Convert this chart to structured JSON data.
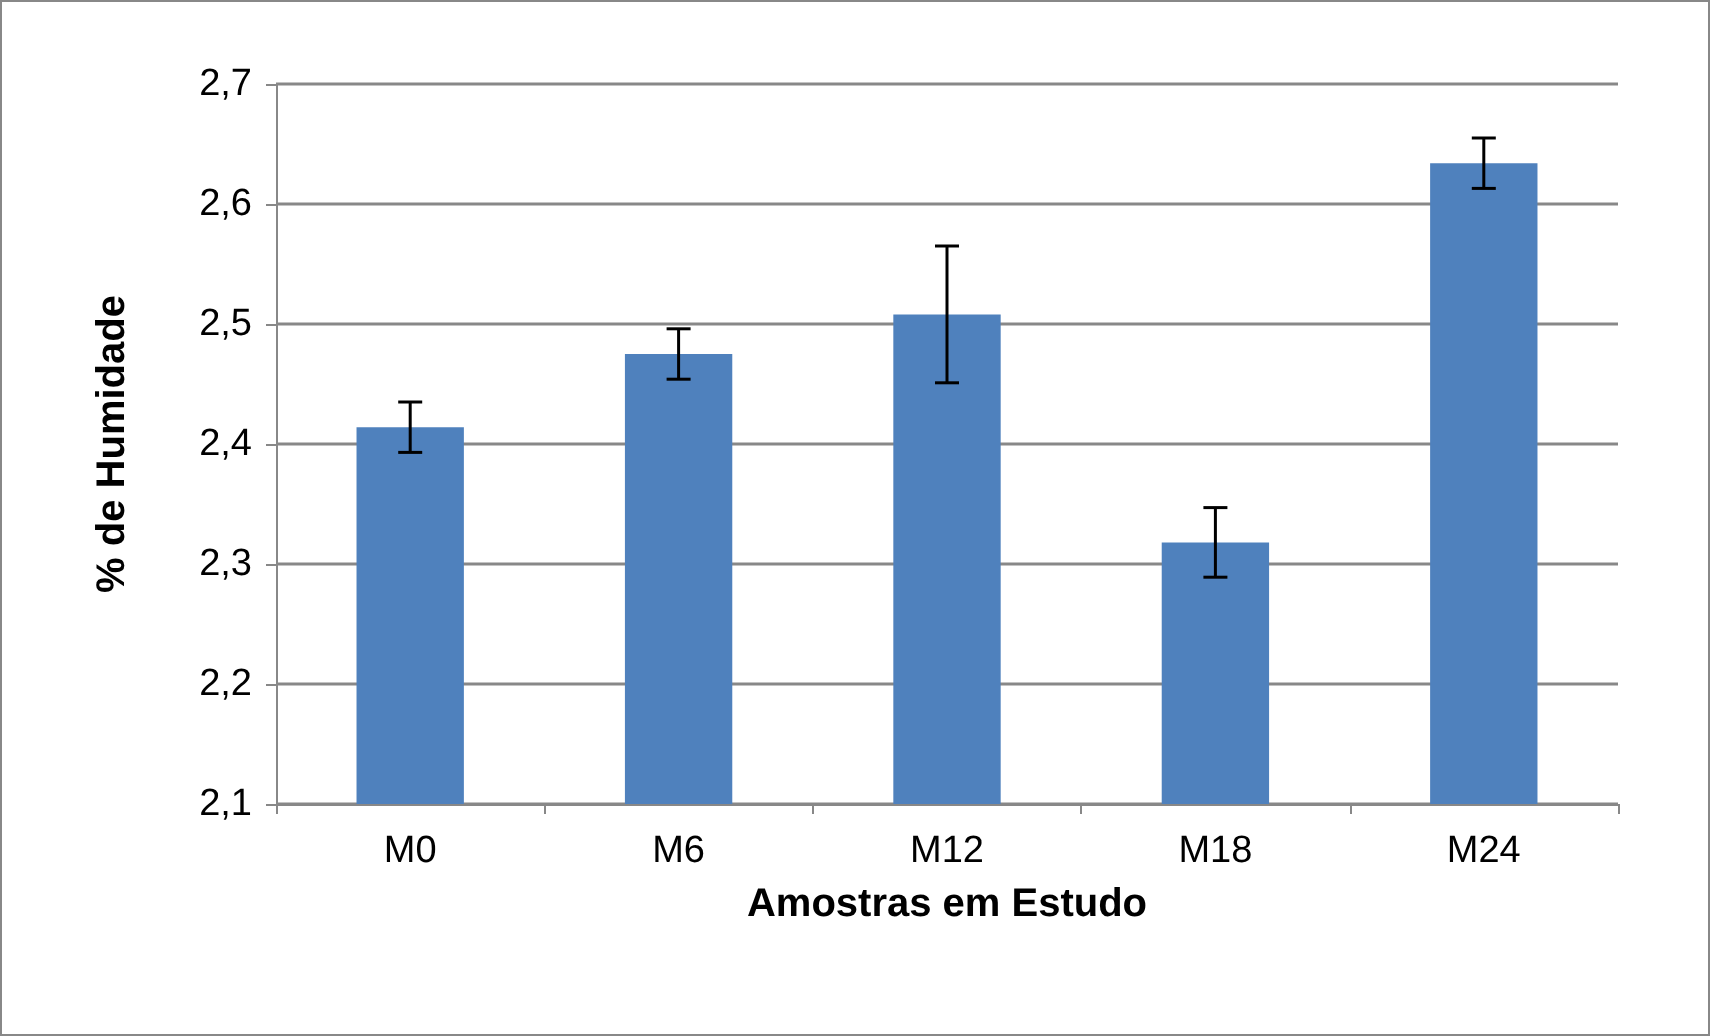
{
  "chart_data": {
    "type": "bar",
    "xlabel": "Amostras em Estudo",
    "ylabel": "% de Humidade",
    "categories": [
      "M0",
      "M6",
      "M12",
      "M18",
      "M24"
    ],
    "values": [
      2.414,
      2.475,
      2.508,
      2.318,
      2.634
    ],
    "errors": [
      0.021,
      0.021,
      0.057,
      0.029,
      0.021
    ],
    "color": "#4f81bd",
    "ylim": [
      2.1,
      2.7
    ],
    "yticks": [
      {
        "value": 2.1,
        "label": "2,1"
      },
      {
        "value": 2.2,
        "label": "2,2"
      },
      {
        "value": 2.3,
        "label": "2,3"
      },
      {
        "value": 2.4,
        "label": "2,4"
      },
      {
        "value": 2.5,
        "label": "2,5"
      },
      {
        "value": 2.6,
        "label": "2,6"
      },
      {
        "value": 2.7,
        "label": "2,7"
      }
    ],
    "grid": "y"
  }
}
